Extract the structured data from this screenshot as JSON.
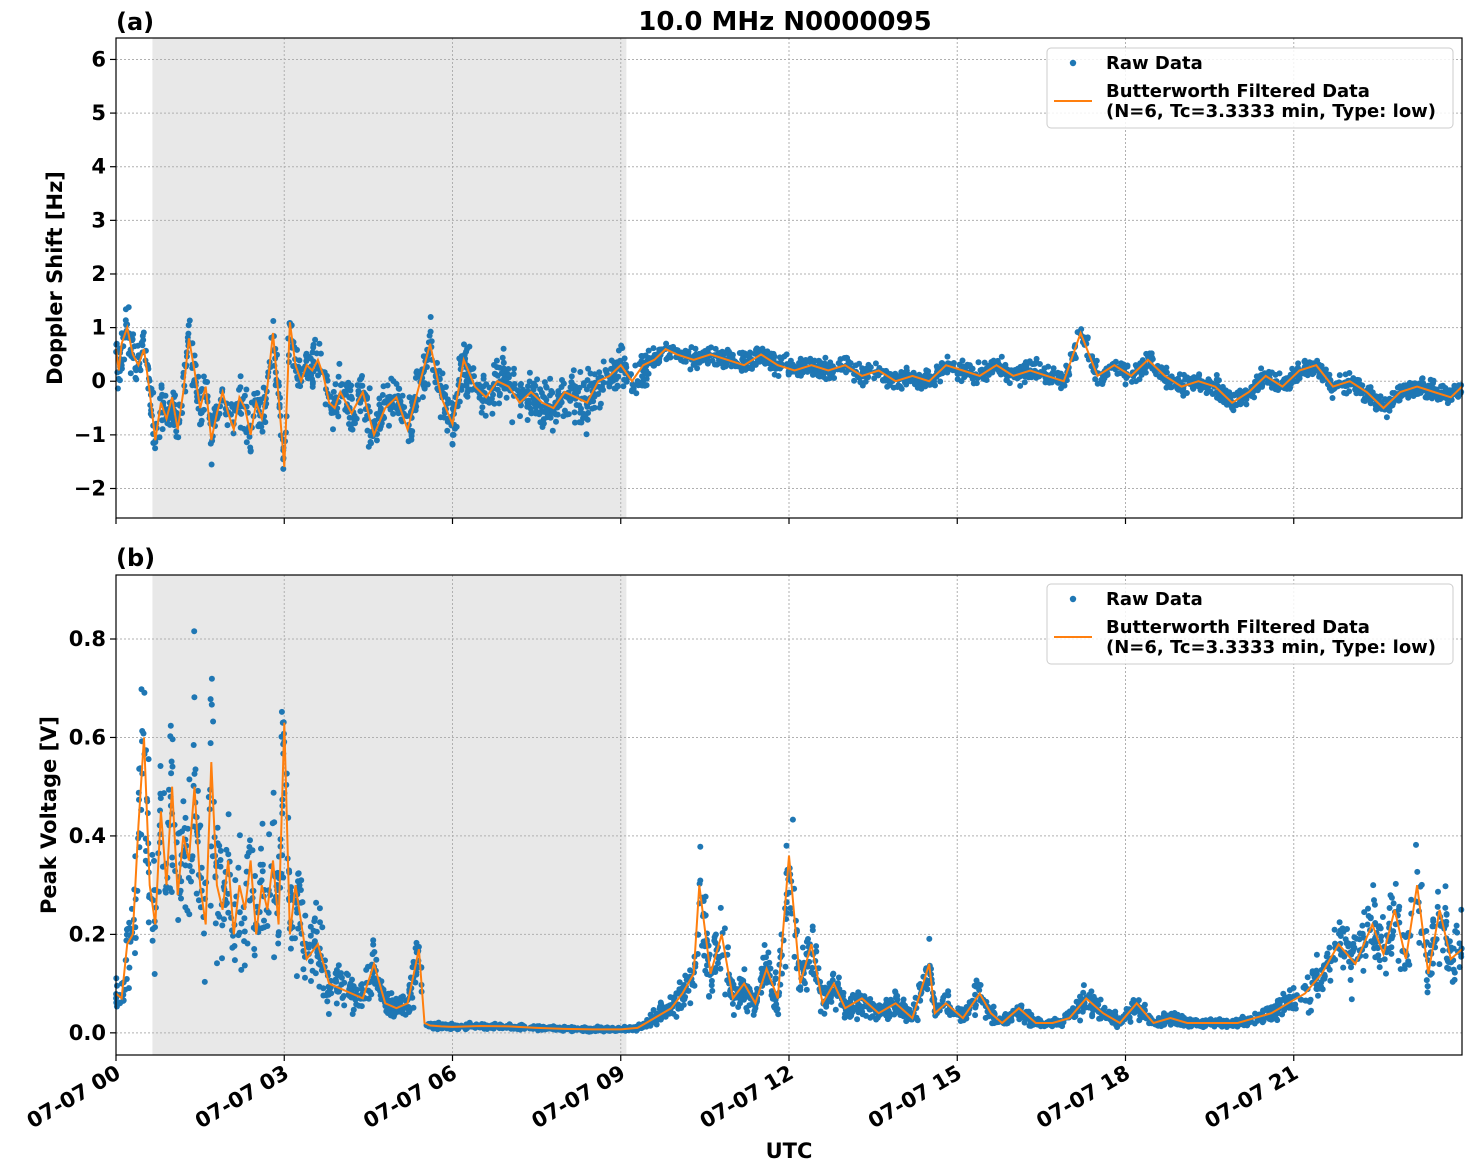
{
  "figure": {
    "title": "10.0 MHz N0000095",
    "xlabel": "UTC",
    "x_tick_labels": [
      "07-07 00",
      "07-07 03",
      "07-07 06",
      "07-07 09",
      "07-07 12",
      "07-07 15",
      "07-07 18",
      "07-07 21"
    ]
  },
  "colors": {
    "raw": "#1f77b4",
    "filtered": "#ff7f0e",
    "shade": "#e8e8e8",
    "grid": "#b0b0b0"
  },
  "chart_data": [
    {
      "type": "scatter",
      "panel_label": "(a)",
      "ylabel": "Doppler Shift [Hz]",
      "xlim": [
        0,
        24
      ],
      "ylim": [
        -2.55,
        6.4
      ],
      "y_ticks": [
        -2,
        -1,
        0,
        1,
        2,
        3,
        4,
        5,
        6
      ],
      "y_tick_labels": [
        "−2",
        "−1",
        "0",
        "1",
        "2",
        "3",
        "4",
        "5",
        "6"
      ],
      "shaded_x_range": [
        0.65,
        9.1
      ],
      "grid": true,
      "legend": {
        "position": "top-right",
        "raw_label": "Raw Data",
        "filtered_label_line1": "Butterworth Filtered Data",
        "filtered_label_line2": "(N=6, Tc=3.3333 min, Type: low)"
      },
      "series": [
        {
          "kind": "line",
          "x": [
            0,
            0.05,
            0.1,
            0.2,
            0.3,
            0.4,
            0.5,
            0.6,
            0.7,
            0.8,
            0.9,
            1.0,
            1.1,
            1.2,
            1.3,
            1.4,
            1.5,
            1.6,
            1.7,
            1.8,
            1.9,
            2.0,
            2.1,
            2.2,
            2.3,
            2.4,
            2.5,
            2.6,
            2.7,
            2.8,
            2.9,
            3.0,
            3.1,
            3.2,
            3.3,
            3.4,
            3.5,
            3.6,
            3.7,
            3.8,
            3.9,
            4.0,
            4.2,
            4.4,
            4.6,
            4.8,
            5.0,
            5.2,
            5.4,
            5.6,
            5.8,
            6.0,
            6.2,
            6.4,
            6.6,
            6.8,
            7.0,
            7.2,
            7.4,
            7.6,
            7.8,
            8.0,
            8.2,
            8.4,
            8.6,
            8.8,
            9.0,
            9.2,
            9.4,
            9.6,
            9.8,
            10.0,
            10.3,
            10.6,
            10.9,
            11.2,
            11.5,
            11.8,
            12.1,
            12.4,
            12.7,
            13.0,
            13.3,
            13.6,
            13.9,
            14.2,
            14.5,
            14.8,
            15.1,
            15.4,
            15.7,
            16.0,
            16.3,
            16.6,
            16.9,
            17.2,
            17.5,
            17.8,
            18.1,
            18.4,
            18.7,
            19.0,
            19.3,
            19.6,
            19.9,
            20.2,
            20.5,
            20.8,
            21.1,
            21.4,
            21.7,
            22.0,
            22.3,
            22.6,
            22.9,
            23.2,
            23.5,
            23.8,
            24.0
          ],
          "values": [
            0.6,
            0.2,
            0.7,
            1.0,
            0.5,
            0.3,
            0.6,
            -0.2,
            -1.1,
            -0.4,
            -0.7,
            -0.3,
            -0.9,
            -0.2,
            0.8,
            0.2,
            -0.5,
            -0.1,
            -1.1,
            -0.6,
            -0.2,
            -0.6,
            -0.9,
            -0.3,
            -0.5,
            -1.0,
            -0.4,
            -0.7,
            -0.1,
            0.9,
            -0.3,
            -1.6,
            1.1,
            0.3,
            0.0,
            0.3,
            0.2,
            0.4,
            0.1,
            -0.4,
            -0.5,
            -0.2,
            -0.6,
            -0.2,
            -1.0,
            -0.5,
            -0.3,
            -0.9,
            -0.1,
            0.7,
            -0.3,
            -0.8,
            0.4,
            -0.1,
            -0.3,
            0.0,
            -0.1,
            -0.4,
            -0.2,
            -0.4,
            -0.5,
            -0.2,
            -0.3,
            -0.4,
            0.0,
            0.1,
            0.3,
            0.0,
            0.3,
            0.4,
            0.6,
            0.5,
            0.4,
            0.5,
            0.4,
            0.3,
            0.5,
            0.3,
            0.2,
            0.3,
            0.2,
            0.3,
            0.1,
            0.2,
            0.0,
            0.1,
            0.0,
            0.3,
            0.2,
            0.1,
            0.3,
            0.1,
            0.2,
            0.1,
            0.0,
            0.9,
            0.1,
            0.3,
            0.1,
            0.4,
            0.1,
            -0.1,
            0.0,
            -0.1,
            -0.4,
            -0.2,
            0.1,
            -0.1,
            0.2,
            0.3,
            -0.1,
            0.0,
            -0.2,
            -0.5,
            -0.2,
            -0.1,
            -0.2,
            -0.3,
            -0.1
          ]
        }
      ]
    },
    {
      "type": "scatter",
      "panel_label": "(b)",
      "ylabel": "Peak Voltage [V]",
      "xlim": [
        0,
        24
      ],
      "ylim": [
        -0.045,
        0.93
      ],
      "y_ticks": [
        0.0,
        0.2,
        0.4,
        0.6,
        0.8
      ],
      "y_tick_labels": [
        "0.0",
        "0.2",
        "0.4",
        "0.6",
        "0.8"
      ],
      "shaded_x_range": [
        0.65,
        9.1
      ],
      "grid": true,
      "legend": {
        "position": "top-right",
        "raw_label": "Raw Data",
        "filtered_label_line1": "Butterworth Filtered Data",
        "filtered_label_line2": "(N=6, Tc=3.3333 min, Type: low)"
      },
      "series": [
        {
          "kind": "line",
          "x": [
            0,
            0.1,
            0.2,
            0.3,
            0.4,
            0.5,
            0.6,
            0.7,
            0.8,
            0.9,
            1.0,
            1.1,
            1.2,
            1.3,
            1.4,
            1.5,
            1.6,
            1.7,
            1.8,
            1.9,
            2.0,
            2.1,
            2.2,
            2.3,
            2.4,
            2.5,
            2.6,
            2.7,
            2.8,
            2.9,
            3.0,
            3.1,
            3.2,
            3.4,
            3.6,
            3.8,
            4.0,
            4.2,
            4.4,
            4.6,
            4.8,
            5.0,
            5.2,
            5.4,
            5.5,
            5.6,
            5.8,
            6.0,
            6.5,
            7.0,
            7.5,
            8.0,
            8.5,
            9.0,
            9.3,
            9.6,
            9.9,
            10.1,
            10.3,
            10.4,
            10.6,
            10.8,
            11.0,
            11.2,
            11.4,
            11.6,
            11.8,
            12.0,
            12.2,
            12.4,
            12.6,
            12.8,
            13.0,
            13.3,
            13.6,
            13.9,
            14.2,
            14.5,
            14.6,
            14.8,
            15.1,
            15.4,
            15.6,
            15.8,
            16.1,
            16.4,
            16.7,
            17.0,
            17.3,
            17.6,
            17.9,
            18.2,
            18.5,
            18.8,
            19.1,
            19.4,
            19.7,
            20.0,
            20.3,
            20.6,
            20.9,
            21.2,
            21.5,
            21.8,
            22.1,
            22.4,
            22.6,
            22.8,
            23.0,
            23.2,
            23.4,
            23.6,
            23.8,
            24.0
          ],
          "values": [
            0.08,
            0.07,
            0.18,
            0.2,
            0.42,
            0.6,
            0.3,
            0.22,
            0.45,
            0.3,
            0.5,
            0.28,
            0.4,
            0.35,
            0.5,
            0.3,
            0.22,
            0.55,
            0.3,
            0.25,
            0.35,
            0.2,
            0.3,
            0.25,
            0.35,
            0.2,
            0.3,
            0.25,
            0.35,
            0.22,
            0.63,
            0.2,
            0.3,
            0.15,
            0.18,
            0.1,
            0.09,
            0.08,
            0.07,
            0.14,
            0.06,
            0.05,
            0.06,
            0.17,
            0.02,
            0.015,
            0.013,
            0.012,
            0.014,
            0.013,
            0.01,
            0.008,
            0.007,
            0.007,
            0.01,
            0.03,
            0.05,
            0.08,
            0.12,
            0.3,
            0.12,
            0.2,
            0.07,
            0.1,
            0.06,
            0.13,
            0.07,
            0.36,
            0.1,
            0.18,
            0.06,
            0.1,
            0.05,
            0.07,
            0.04,
            0.06,
            0.03,
            0.14,
            0.04,
            0.06,
            0.03,
            0.08,
            0.04,
            0.02,
            0.05,
            0.02,
            0.02,
            0.03,
            0.07,
            0.04,
            0.02,
            0.06,
            0.02,
            0.03,
            0.02,
            0.02,
            0.02,
            0.02,
            0.03,
            0.04,
            0.06,
            0.08,
            0.12,
            0.18,
            0.14,
            0.22,
            0.16,
            0.25,
            0.15,
            0.3,
            0.12,
            0.25,
            0.15,
            0.17
          ]
        }
      ]
    }
  ]
}
